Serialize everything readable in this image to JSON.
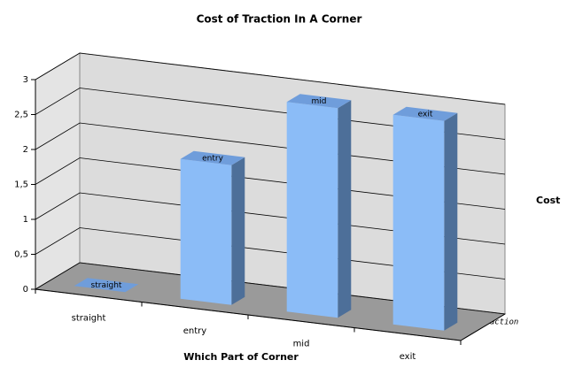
{
  "chart_data": {
    "type": "bar3d",
    "title": "Cost of Traction In A Corner",
    "x_label": "Which Part of Corner",
    "categories": [
      "straight",
      "entry",
      "mid",
      "exit"
    ],
    "depth_categories": [
      "traction"
    ],
    "series": [
      {
        "name": "Cost",
        "color": "#8bbcf7",
        "values": [
          0,
          2,
          3,
          3
        ]
      }
    ],
    "ylim": [
      0,
      3
    ],
    "yticks": [
      0,
      {
        "value": 0.5,
        "label": "0,5"
      },
      1,
      {
        "value": 1.5,
        "label": "1,5"
      },
      2,
      {
        "value": 2.5,
        "label": "2,5"
      },
      3
    ],
    "grid": true,
    "legend": "right"
  }
}
